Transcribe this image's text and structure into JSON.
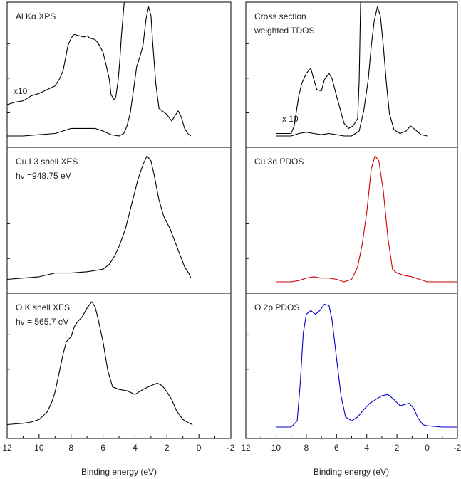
{
  "chart_data": {
    "type": "line",
    "xlabel": "Binding energy (eV)",
    "x_ticks": [
      12,
      10,
      8,
      6,
      4,
      2,
      0,
      -2
    ],
    "x_range": [
      12,
      -2
    ],
    "panels": [
      {
        "id": "xps",
        "column": "left",
        "row": 0,
        "labels": [
          "Al Kα XPS"
        ],
        "annotations": [
          {
            "text": "x10",
            "x": 11.6,
            "level": 0.3
          }
        ],
        "series": [
          {
            "color": "#000000",
            "points": [
              [
                12,
                0.25
              ],
              [
                11.5,
                0.27
              ],
              [
                11,
                0.28
              ],
              [
                10.5,
                0.32
              ],
              [
                10,
                0.34
              ],
              [
                9.5,
                0.37
              ],
              [
                9,
                0.4
              ],
              [
                8.7,
                0.46
              ],
              [
                8.5,
                0.52
              ],
              [
                8.3,
                0.65
              ],
              [
                8.2,
                0.72
              ],
              [
                8.0,
                0.78
              ],
              [
                7.8,
                0.81
              ],
              [
                7.5,
                0.8
              ],
              [
                7.2,
                0.79
              ],
              [
                7.0,
                0.8
              ],
              [
                6.8,
                0.78
              ],
              [
                6.5,
                0.77
              ],
              [
                6.3,
                0.74
              ],
              [
                6.0,
                0.67
              ],
              [
                5.8,
                0.56
              ],
              [
                5.6,
                0.45
              ],
              [
                5.5,
                0.33
              ],
              [
                5.3,
                0.29
              ],
              [
                5.2,
                0.31
              ],
              [
                5.05,
                0.45
              ],
              [
                4.95,
                0.6
              ],
              [
                4.85,
                0.8
              ],
              [
                4.75,
                0.95
              ],
              [
                4.65,
                1.1
              ]
            ]
          },
          {
            "color": "#000000",
            "points": [
              [
                12,
                0.0
              ],
              [
                11,
                0.0
              ],
              [
                10,
                0.01
              ],
              [
                9,
                0.02
              ],
              [
                8.5,
                0.04
              ],
              [
                8,
                0.06
              ],
              [
                7.5,
                0.06
              ],
              [
                7,
                0.06
              ],
              [
                6.5,
                0.06
              ],
              [
                6,
                0.04
              ],
              [
                5.5,
                0.01
              ],
              [
                5,
                0.0
              ],
              [
                4.7,
                0.02
              ],
              [
                4.5,
                0.08
              ],
              [
                4.3,
                0.18
              ],
              [
                4.1,
                0.36
              ],
              [
                3.9,
                0.55
              ],
              [
                3.7,
                0.63
              ],
              [
                3.5,
                0.72
              ],
              [
                3.3,
                0.94
              ],
              [
                3.15,
                1.03
              ],
              [
                3.0,
                0.96
              ],
              [
                2.9,
                0.76
              ],
              [
                2.7,
                0.42
              ],
              [
                2.5,
                0.22
              ],
              [
                2.3,
                0.2
              ],
              [
                2.0,
                0.17
              ],
              [
                1.7,
                0.12
              ],
              [
                1.5,
                0.16
              ],
              [
                1.3,
                0.2
              ],
              [
                1.1,
                0.15
              ],
              [
                0.9,
                0.06
              ],
              [
                0.7,
                0.02
              ],
              [
                0.5,
                0.0
              ]
            ]
          }
        ]
      },
      {
        "id": "cu-l3",
        "column": "left",
        "row": 1,
        "labels": [
          "Cu L3 shell XES",
          "hν =948.75 eV"
        ],
        "annotations": [],
        "series": [
          {
            "color": "#000000",
            "points": [
              [
                12,
                0.02
              ],
              [
                11,
                0.03
              ],
              [
                10,
                0.04
              ],
              [
                9,
                0.07
              ],
              [
                8,
                0.07
              ],
              [
                7,
                0.08
              ],
              [
                6,
                0.1
              ],
              [
                5.6,
                0.14
              ],
              [
                5.3,
                0.2
              ],
              [
                5,
                0.28
              ],
              [
                4.6,
                0.42
              ],
              [
                4.2,
                0.62
              ],
              [
                3.8,
                0.82
              ],
              [
                3.5,
                0.93
              ],
              [
                3.25,
                1.0
              ],
              [
                3.0,
                0.96
              ],
              [
                2.8,
                0.85
              ],
              [
                2.5,
                0.65
              ],
              [
                2.2,
                0.52
              ],
              [
                1.8,
                0.42
              ],
              [
                1.5,
                0.32
              ],
              [
                1.2,
                0.22
              ],
              [
                0.9,
                0.12
              ],
              [
                0.6,
                0.06
              ],
              [
                0.5,
                0.03
              ]
            ]
          }
        ]
      },
      {
        "id": "o-k",
        "column": "left",
        "row": 2,
        "labels": [
          "O K shell XES",
          "hν = 565.7 eV"
        ],
        "annotations": [],
        "series": [
          {
            "color": "#000000",
            "points": [
              [
                12,
                0.02
              ],
              [
                11,
                0.03
              ],
              [
                10.5,
                0.04
              ],
              [
                10,
                0.06
              ],
              [
                9.5,
                0.12
              ],
              [
                9.2,
                0.2
              ],
              [
                9,
                0.28
              ],
              [
                8.7,
                0.46
              ],
              [
                8.5,
                0.58
              ],
              [
                8.3,
                0.68
              ],
              [
                8,
                0.72
              ],
              [
                7.8,
                0.8
              ],
              [
                7.6,
                0.84
              ],
              [
                7.3,
                0.88
              ],
              [
                7.0,
                0.95
              ],
              [
                6.7,
                1.0
              ],
              [
                6.5,
                0.96
              ],
              [
                6.3,
                0.86
              ],
              [
                6.0,
                0.68
              ],
              [
                5.7,
                0.45
              ],
              [
                5.4,
                0.32
              ],
              [
                5.0,
                0.3
              ],
              [
                4.5,
                0.29
              ],
              [
                4.0,
                0.26
              ],
              [
                3.5,
                0.3
              ],
              [
                3.0,
                0.33
              ],
              [
                2.6,
                0.35
              ],
              [
                2.3,
                0.33
              ],
              [
                2.0,
                0.28
              ],
              [
                1.7,
                0.22
              ],
              [
                1.4,
                0.13
              ],
              [
                1.0,
                0.06
              ],
              [
                0.6,
                0.03
              ],
              [
                0.4,
                0.02
              ]
            ]
          }
        ]
      },
      {
        "id": "tdos",
        "column": "right",
        "row": 0,
        "labels": [
          "Cross section",
          "weighted TDOS"
        ],
        "annotations": [
          {
            "text": "x 10",
            "x": 9.6,
            "level": 0.08
          }
        ],
        "series": [
          {
            "color": "#000000",
            "points": [
              [
                10,
                0.02
              ],
              [
                9,
                0.02
              ],
              [
                8.8,
                0.08
              ],
              [
                8.5,
                0.32
              ],
              [
                8.3,
                0.42
              ],
              [
                8.0,
                0.5
              ],
              [
                7.7,
                0.54
              ],
              [
                7.5,
                0.45
              ],
              [
                7.3,
                0.37
              ],
              [
                7.0,
                0.36
              ],
              [
                6.8,
                0.45
              ],
              [
                6.5,
                0.5
              ],
              [
                6.3,
                0.46
              ],
              [
                6.0,
                0.32
              ],
              [
                5.5,
                0.1
              ],
              [
                5.2,
                0.06
              ],
              [
                4.9,
                0.08
              ],
              [
                4.6,
                0.14
              ],
              [
                4.5,
                0.45
              ],
              [
                4.45,
                0.8
              ],
              [
                4.4,
                1.1
              ]
            ]
          },
          {
            "color": "#000000",
            "points": [
              [
                10,
                0.0
              ],
              [
                9,
                0.0
              ],
              [
                8.5,
                0.02
              ],
              [
                8,
                0.03
              ],
              [
                7.5,
                0.02
              ],
              [
                7,
                0.01
              ],
              [
                6.5,
                0.02
              ],
              [
                6,
                0.01
              ],
              [
                5.5,
                0.0
              ],
              [
                5,
                0.0
              ],
              [
                4.5,
                0.04
              ],
              [
                4.2,
                0.2
              ],
              [
                3.9,
                0.45
              ],
              [
                3.7,
                0.72
              ],
              [
                3.5,
                0.92
              ],
              [
                3.3,
                1.03
              ],
              [
                3.1,
                0.96
              ],
              [
                2.9,
                0.72
              ],
              [
                2.7,
                0.42
              ],
              [
                2.5,
                0.18
              ],
              [
                2.2,
                0.05
              ],
              [
                1.8,
                0.02
              ],
              [
                1.4,
                0.04
              ],
              [
                1.1,
                0.08
              ],
              [
                0.8,
                0.05
              ],
              [
                0.4,
                0.01
              ],
              [
                0,
                0.0
              ]
            ]
          }
        ]
      },
      {
        "id": "cu-3d",
        "column": "right",
        "row": 1,
        "labels": [
          "Cu 3d PDOS"
        ],
        "annotations": [],
        "series": [
          {
            "color": "#cc0000",
            "points": [
              [
                10,
                0.0
              ],
              [
                9,
                0.0
              ],
              [
                8.5,
                0.01
              ],
              [
                8,
                0.03
              ],
              [
                7.5,
                0.04
              ],
              [
                7,
                0.03
              ],
              [
                6.5,
                0.03
              ],
              [
                6,
                0.02
              ],
              [
                5.5,
                0.0
              ],
              [
                5,
                0.02
              ],
              [
                4.6,
                0.12
              ],
              [
                4.3,
                0.3
              ],
              [
                4.0,
                0.55
              ],
              [
                3.7,
                0.9
              ],
              [
                3.45,
                1.0
              ],
              [
                3.2,
                0.96
              ],
              [
                2.9,
                0.72
              ],
              [
                2.6,
                0.35
              ],
              [
                2.3,
                0.1
              ],
              [
                2.0,
                0.07
              ],
              [
                1.5,
                0.05
              ],
              [
                1.0,
                0.04
              ],
              [
                0.5,
                0.02
              ],
              [
                0,
                0.0
              ],
              [
                -1,
                0.0
              ],
              [
                -2,
                0.0
              ]
            ]
          }
        ]
      },
      {
        "id": "o-2p",
        "column": "right",
        "row": 2,
        "labels": [
          "O 2p PDOS"
        ],
        "annotations": [],
        "series": [
          {
            "color": "#0000cc",
            "points": [
              [
                10,
                0.0
              ],
              [
                9,
                0.0
              ],
              [
                8.6,
                0.05
              ],
              [
                8.4,
                0.35
              ],
              [
                8.2,
                0.75
              ],
              [
                8.0,
                0.9
              ],
              [
                7.7,
                0.93
              ],
              [
                7.4,
                0.9
              ],
              [
                7.1,
                0.93
              ],
              [
                6.8,
                0.98
              ],
              [
                6.5,
                0.97
              ],
              [
                6.3,
                0.86
              ],
              [
                6.0,
                0.55
              ],
              [
                5.7,
                0.25
              ],
              [
                5.4,
                0.08
              ],
              [
                5.0,
                0.05
              ],
              [
                4.6,
                0.08
              ],
              [
                4.2,
                0.14
              ],
              [
                3.8,
                0.19
              ],
              [
                3.4,
                0.22
              ],
              [
                3.0,
                0.25
              ],
              [
                2.6,
                0.26
              ],
              [
                2.2,
                0.22
              ],
              [
                1.8,
                0.17
              ],
              [
                1.5,
                0.18
              ],
              [
                1.2,
                0.19
              ],
              [
                0.9,
                0.15
              ],
              [
                0.6,
                0.07
              ],
              [
                0.3,
                0.02
              ],
              [
                0,
                0.01
              ],
              [
                -1,
                0.0
              ],
              [
                -2,
                0.0
              ]
            ]
          }
        ]
      }
    ]
  }
}
